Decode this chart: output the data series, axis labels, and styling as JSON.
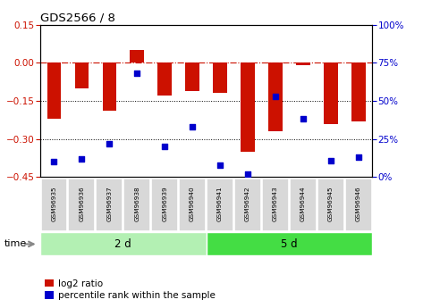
{
  "title": "GDS2566 / 8",
  "samples": [
    "GSM96935",
    "GSM96936",
    "GSM96937",
    "GSM96938",
    "GSM96939",
    "GSM96940",
    "GSM96941",
    "GSM96942",
    "GSM96943",
    "GSM96944",
    "GSM96945",
    "GSM96946"
  ],
  "log2_ratio": [
    -0.22,
    -0.1,
    -0.19,
    0.05,
    -0.13,
    -0.11,
    -0.12,
    -0.35,
    -0.27,
    -0.01,
    -0.24,
    -0.23
  ],
  "percentile_rank": [
    10,
    12,
    22,
    68,
    20,
    33,
    8,
    2,
    53,
    38,
    11,
    13
  ],
  "group1_label": "2 d",
  "group1_count": 6,
  "group2_label": "5 d",
  "group2_count": 6,
  "group1_color": "#b3f0b3",
  "group2_color": "#44dd44",
  "bar_color": "#cc1100",
  "scatter_color": "#0000cc",
  "ylim_left": [
    -0.45,
    0.15
  ],
  "ylim_right": [
    0,
    100
  ],
  "yticks_left": [
    0.15,
    0.0,
    -0.15,
    -0.3,
    -0.45
  ],
  "yticks_right": [
    100,
    75,
    50,
    25,
    0
  ],
  "bar_width": 0.5,
  "time_label": "time",
  "legend_items": [
    "log2 ratio",
    "percentile rank within the sample"
  ],
  "bg_color": "#ffffff"
}
